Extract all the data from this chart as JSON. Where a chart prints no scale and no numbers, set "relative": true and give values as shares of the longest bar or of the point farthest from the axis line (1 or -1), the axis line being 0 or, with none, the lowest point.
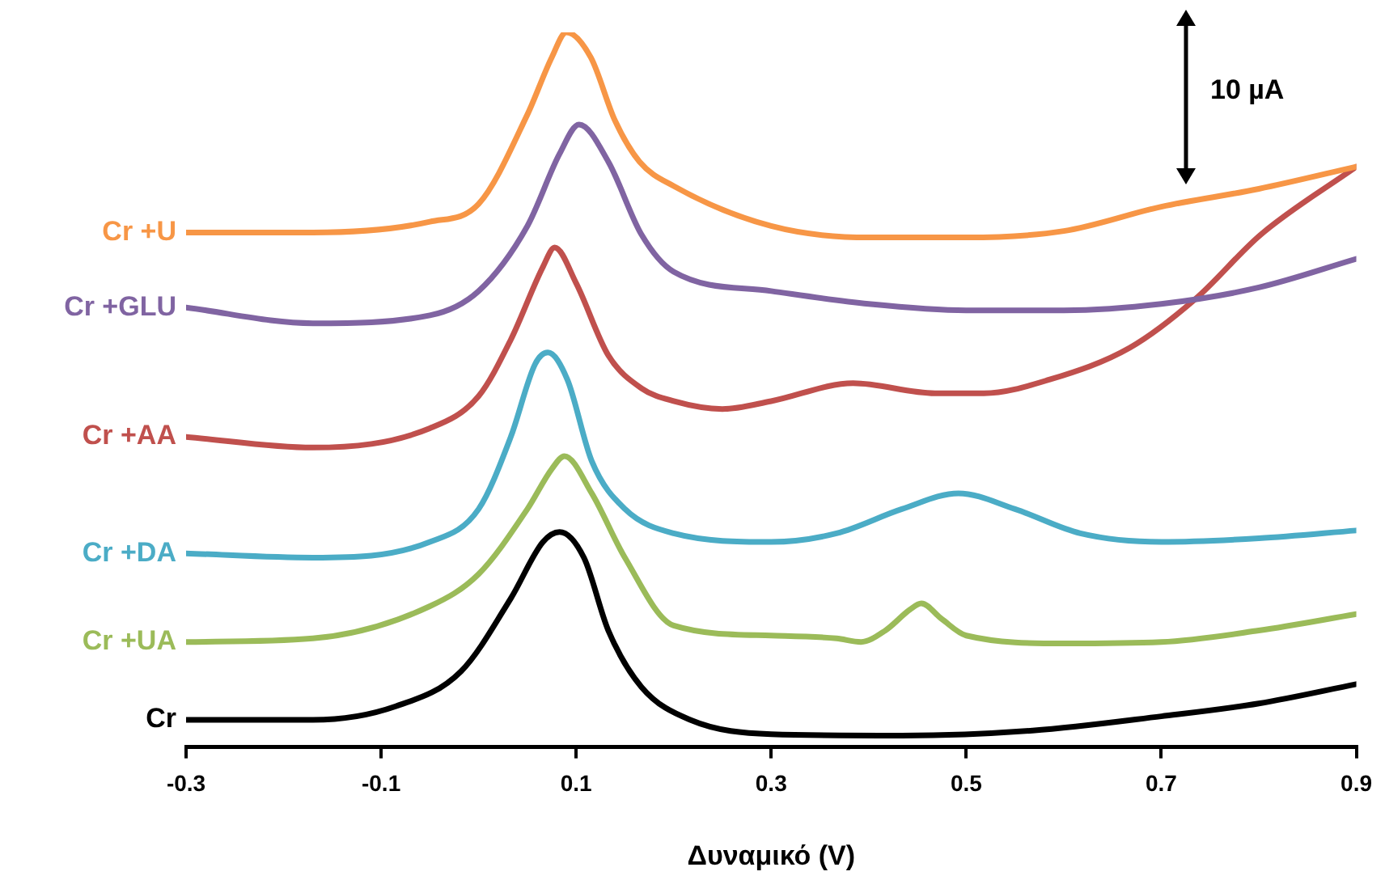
{
  "chart_data": {
    "type": "line",
    "xlabel": "Δυναμικό (V)",
    "xlim": [
      -0.3,
      0.9
    ],
    "xticks": [
      -0.3,
      -0.1,
      0.1,
      0.3,
      0.5,
      0.7,
      0.9
    ],
    "relative": true,
    "grid": false,
    "legend": false,
    "tick_labels": "x",
    "marker": "none",
    "line_style": "solid",
    "annotations": [
      "10 µA"
    ],
    "series": [
      {
        "name": "Cr +U",
        "color": "#f79646",
        "x": [
          -0.3,
          -0.17,
          -0.05,
          0,
          0.05,
          0.075,
          0.09,
          0.115,
          0.14,
          0.165,
          0.2,
          0.3,
          0.4,
          0.5,
          0.6,
          0.7,
          0.8,
          0.9
        ],
        "values": [
          0.72,
          0.72,
          0.735,
          0.76,
          0.885,
          0.965,
          1.0,
          0.965,
          0.876,
          0.819,
          0.785,
          0.729,
          0.713,
          0.713,
          0.722,
          0.756,
          0.781,
          0.812
        ]
      },
      {
        "name": "Cr +GLU",
        "color": "#8064a2",
        "x": [
          -0.3,
          -0.17,
          -0.05,
          0,
          0.05,
          0.083,
          0.103,
          0.133,
          0.167,
          0.2,
          0.3,
          0.4,
          0.5,
          0.6,
          0.7,
          0.8,
          0.9
        ],
        "values": [
          0.615,
          0.593,
          0.604,
          0.638,
          0.729,
          0.83,
          0.871,
          0.819,
          0.717,
          0.665,
          0.638,
          0.62,
          0.611,
          0.611,
          0.62,
          0.643,
          0.683
        ]
      },
      {
        "name": "Cr +AA",
        "color": "#c0504d",
        "x": [
          -0.3,
          -0.17,
          -0.05,
          0,
          0.033,
          0.066,
          0.078,
          0.1,
          0.133,
          0.167,
          0.2,
          0.25,
          0.3,
          0.384,
          0.468,
          0.518,
          0.585,
          0.668,
          0.735,
          0.802,
          0.9
        ],
        "values": [
          0.434,
          0.419,
          0.446,
          0.491,
          0.57,
          0.672,
          0.699,
          0.649,
          0.548,
          0.502,
          0.484,
          0.473,
          0.484,
          0.509,
          0.495,
          0.495,
          0.514,
          0.559,
          0.627,
          0.717,
          0.812
        ]
      },
      {
        "name": "Cr +DA",
        "color": "#4bacc6",
        "x": [
          -0.3,
          -0.17,
          -0.05,
          0,
          0.033,
          0.058,
          0.071,
          0.091,
          0.116,
          0.15,
          0.2,
          0.3,
          0.367,
          0.434,
          0.492,
          0.55,
          0.617,
          0.7,
          0.8,
          0.9
        ],
        "values": [
          0.271,
          0.265,
          0.287,
          0.333,
          0.434,
          0.536,
          0.552,
          0.514,
          0.4,
          0.333,
          0.299,
          0.287,
          0.299,
          0.333,
          0.355,
          0.333,
          0.299,
          0.287,
          0.292,
          0.303
        ]
      },
      {
        "name": "Cr +UA",
        "color": "#9bbb59",
        "x": [
          -0.3,
          -0.17,
          -0.05,
          0,
          0.05,
          0.075,
          0.088,
          0.116,
          0.15,
          0.2,
          0.3,
          0.367,
          0.392,
          0.417,
          0.442,
          0.454,
          0.475,
          0.5,
          0.6,
          0.7,
          0.8,
          0.9
        ],
        "values": [
          0.147,
          0.152,
          0.197,
          0.242,
          0.333,
          0.389,
          0.407,
          0.355,
          0.265,
          0.17,
          0.156,
          0.152,
          0.147,
          0.163,
          0.192,
          0.201,
          0.179,
          0.156,
          0.145,
          0.147,
          0.163,
          0.186
        ]
      },
      {
        "name": "Cr",
        "color": "#000000",
        "x": [
          -0.3,
          -0.17,
          -0.085,
          -0.018,
          0.033,
          0.066,
          0.083,
          0.108,
          0.133,
          0.167,
          0.217,
          0.3,
          0.434,
          0.568,
          0.7,
          0.8,
          0.9
        ],
        "values": [
          0.038,
          0.038,
          0.057,
          0.106,
          0.208,
          0.287,
          0.301,
          0.265,
          0.163,
          0.084,
          0.038,
          0.018,
          0.016,
          0.023,
          0.043,
          0.061,
          0.088
        ]
      }
    ]
  }
}
